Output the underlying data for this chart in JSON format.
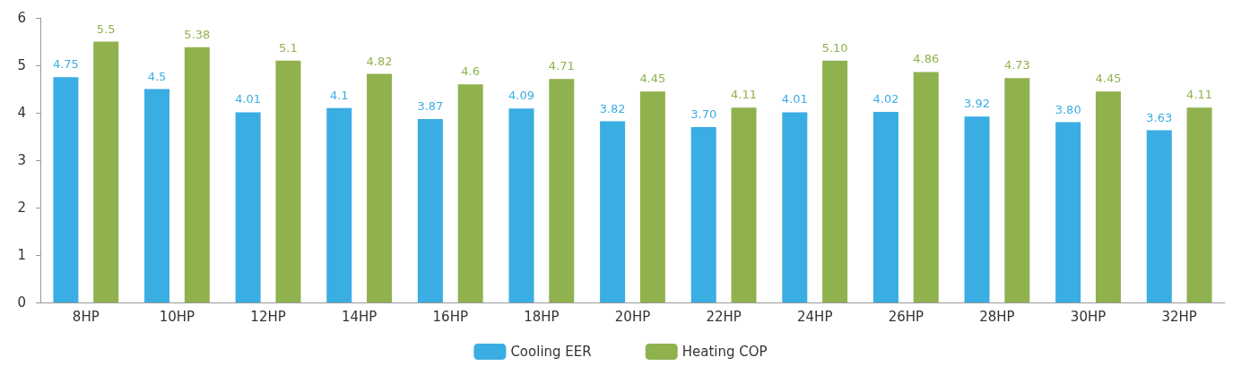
{
  "chart_data": {
    "type": "bar",
    "categories": [
      "8HP",
      "10HP",
      "12HP",
      "14HP",
      "16HP",
      "18HP",
      "20HP",
      "22HP",
      "24HP",
      "26HP",
      "28HP",
      "30HP",
      "32HP"
    ],
    "series": [
      {
        "name": "Cooling EER",
        "color": "#3aade3",
        "values": [
          4.75,
          4.5,
          4.01,
          4.1,
          3.87,
          4.09,
          3.82,
          3.7,
          4.01,
          4.02,
          3.92,
          3.8,
          3.63
        ],
        "value_labels": [
          "4.75",
          "4.5",
          "4.01",
          "4.1",
          "3.87",
          "4.09",
          "3.82",
          "3.70",
          "4.01",
          "4.02",
          "3.92",
          "3.80",
          "3.63"
        ]
      },
      {
        "name": "Heating COP",
        "color": "#8fb24e",
        "values": [
          5.5,
          5.38,
          5.1,
          4.82,
          4.6,
          4.71,
          4.45,
          4.11,
          5.1,
          4.86,
          4.73,
          4.45,
          4.11
        ],
        "value_labels": [
          "5.5",
          "5.38",
          "5.1",
          "4.82",
          "4.6",
          "4.71",
          "4.45",
          "4.11",
          "5.10",
          "4.86",
          "4.73",
          "4.45",
          "4.11"
        ]
      }
    ],
    "ylim": [
      0,
      6
    ],
    "yticks": [
      0,
      1,
      2,
      3,
      4,
      5,
      6
    ],
    "grid": false,
    "legend": "bottom"
  }
}
